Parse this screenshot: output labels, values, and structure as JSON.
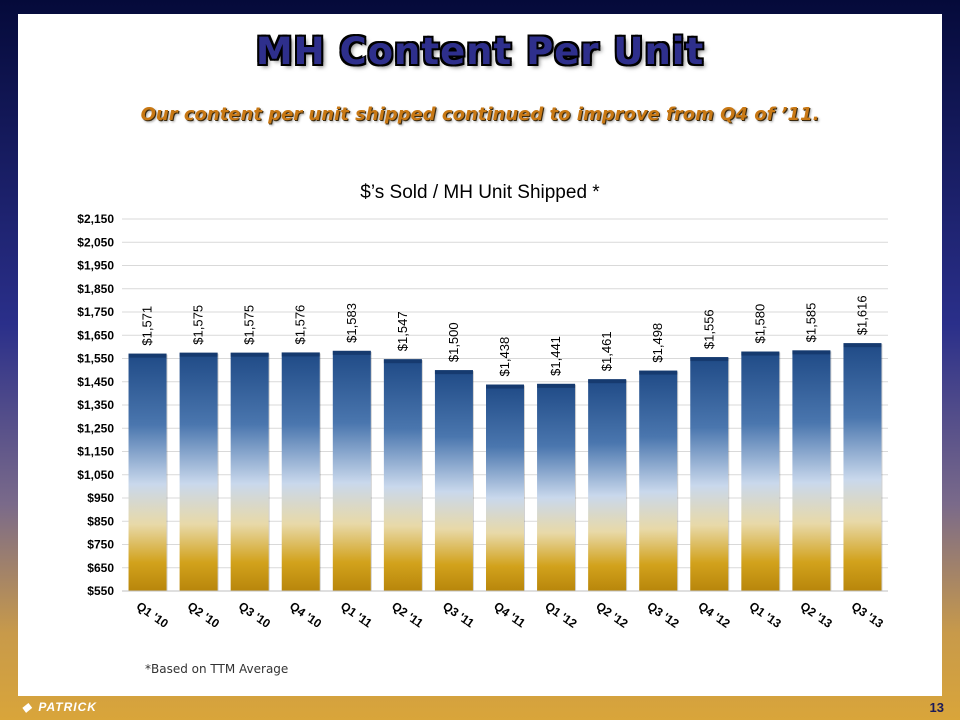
{
  "slide": {
    "title": "MH Content Per Unit",
    "subtitle": "Our content per unit shipped continued to improve from Q4 of ’11.",
    "footnote": "*Based on TTM Average",
    "logo_text": "PATRICK",
    "page_number": "13"
  },
  "chart_data": {
    "type": "bar",
    "title": "$’s Sold / MH Unit Shipped *",
    "xlabel": "",
    "ylabel": "",
    "categories": [
      "Q1 '10",
      "Q2 '10",
      "Q3 '10",
      "Q4 '10",
      "Q1 '11",
      "Q2 '11",
      "Q3 '11",
      "Q4 '11",
      "Q1 '12",
      "Q2 '12",
      "Q3 '12",
      "Q4 '12",
      "Q1 '13",
      "Q2 '13",
      "Q3 '13"
    ],
    "values": [
      1571,
      1575,
      1575,
      1576,
      1583,
      1547,
      1500,
      1438,
      1441,
      1461,
      1498,
      1556,
      1580,
      1585,
      1616
    ],
    "data_labels": [
      "$1,571",
      "$1,575",
      "$1,575",
      "$1,576",
      "$1,583",
      "$1,547",
      "$1,500",
      "$1,438",
      "$1,441",
      "$1,461",
      "$1,498",
      "$1,556",
      "$1,580",
      "$1,585",
      "$1,616"
    ],
    "ylim": [
      550,
      2150
    ],
    "yticks": [
      550,
      650,
      750,
      850,
      950,
      1050,
      1150,
      1250,
      1350,
      1450,
      1550,
      1650,
      1750,
      1850,
      1950,
      2050,
      2150
    ],
    "ytick_labels": [
      "$550",
      "$650",
      "$750",
      "$850",
      "$950",
      "$1,050",
      "$1,150",
      "$1,250",
      "$1,350",
      "$1,450",
      "$1,550",
      "$1,650",
      "$1,750",
      "$1,850",
      "$1,950",
      "$2,050",
      "$2,150"
    ],
    "grid": true,
    "legend": "none",
    "colors": {
      "bar_top": "#1f4e8c",
      "bar_mid": "#c6d6ea",
      "bar_bottom": "#c9960c",
      "grid": "#d9d9d9"
    }
  }
}
